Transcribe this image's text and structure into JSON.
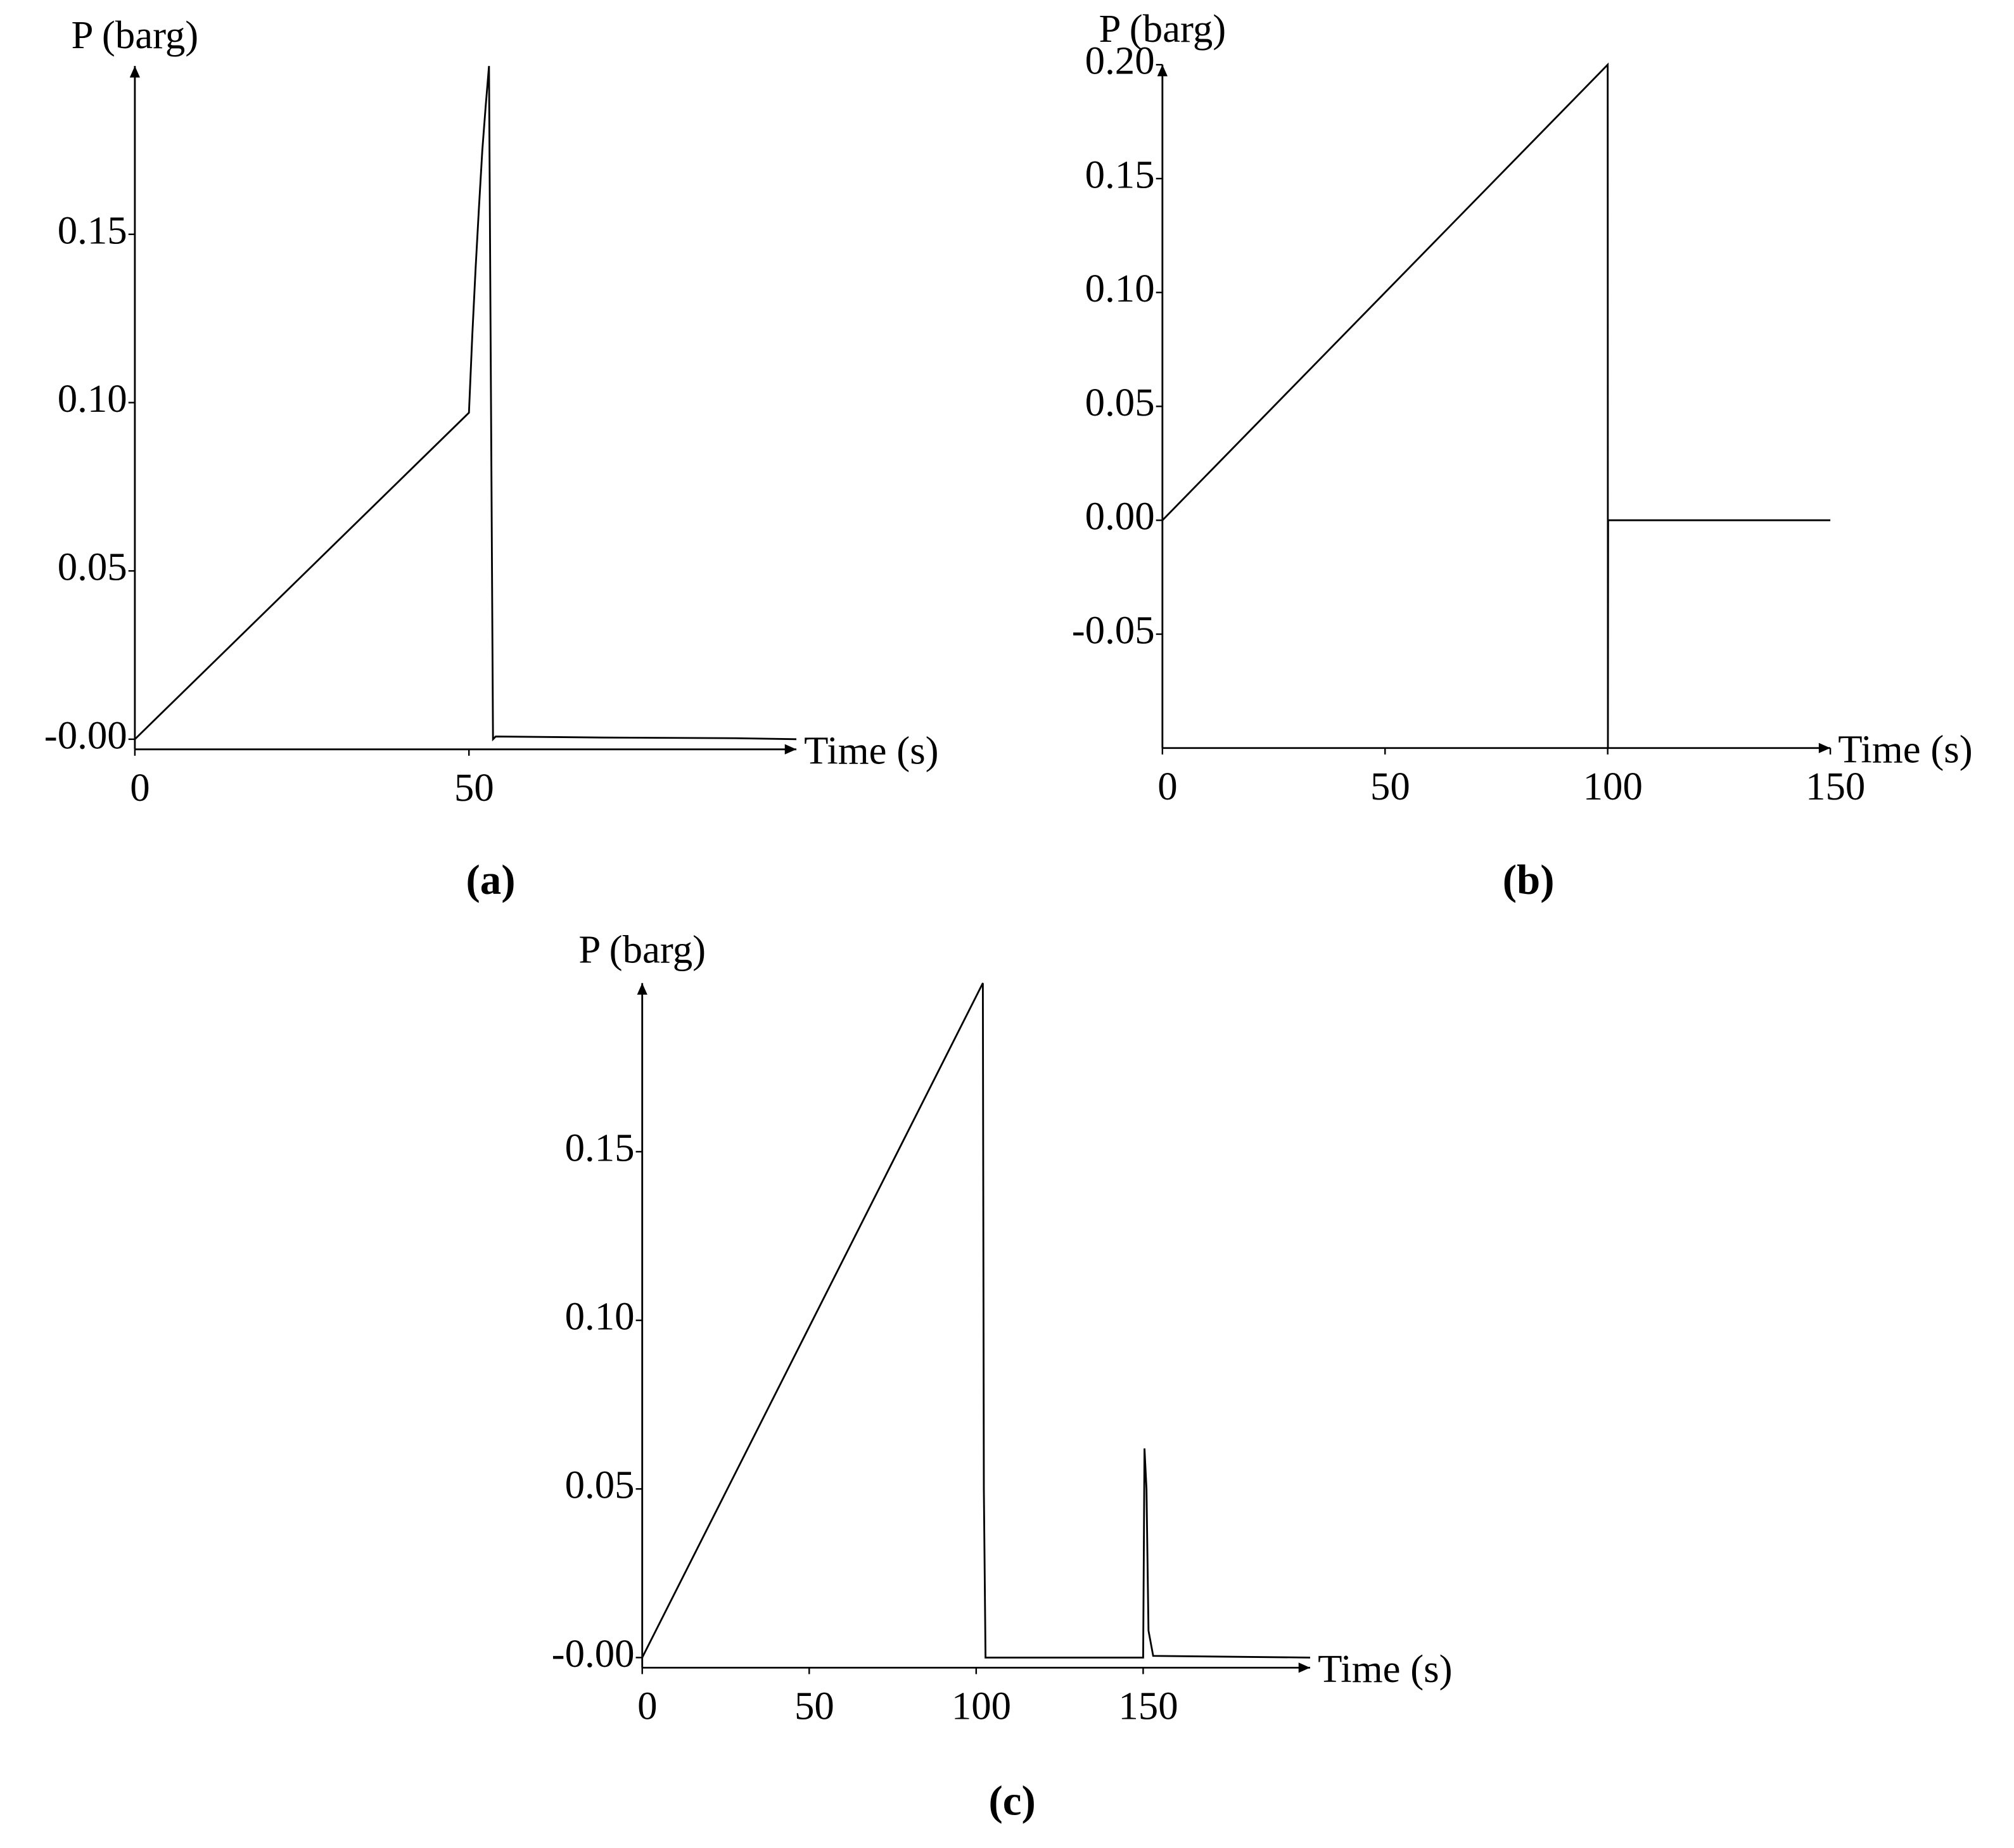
{
  "chart_data": [
    {
      "type": "line",
      "title": "(a)",
      "y_label": "P (barg)",
      "x_label": "Time (s)",
      "color": "#000000",
      "x": [
        0,
        50,
        50.5,
        51,
        51.5,
        52,
        52.5,
        53,
        53.3,
        53.6,
        54,
        70,
        90,
        99
      ],
      "values": [
        0,
        0.097,
        0.12,
        0.14,
        0.158,
        0.175,
        0.188,
        0.2,
        0.1,
        0,
        0.0008,
        0.0005,
        0.0003,
        0
      ],
      "xlim": [
        0,
        99
      ],
      "ylim": [
        -0.003,
        0.2
      ],
      "xticks": [
        0,
        50
      ],
      "yticks": [
        {
          "value": 0,
          "label": "-0.00"
        },
        0.05,
        {
          "value": 0.1,
          "label": "0.10"
        },
        0.15
      ]
    },
    {
      "type": "line",
      "title": "(b)",
      "y_label": "P (barg)",
      "x_label": "Time (s)",
      "color": "#000000",
      "x": [
        0,
        100,
        100.05,
        100.1,
        150
      ],
      "values": [
        0,
        0.2,
        -0.1,
        0,
        0
      ],
      "xlim": [
        0,
        150
      ],
      "ylim": [
        -0.1,
        0.2
      ],
      "xticks": [
        0,
        50,
        100,
        150
      ],
      "yticks": [
        -0.05,
        {
          "value": 0,
          "label": "0.00"
        },
        0.05,
        {
          "value": 0.1,
          "label": "0.10"
        },
        0.15,
        {
          "value": 0.2,
          "label": "0.20"
        }
      ]
    },
    {
      "type": "line",
      "title": "(c)",
      "y_label": "P (barg)",
      "x_label": "Time (s)",
      "color": "#000000",
      "x": [
        0,
        102,
        102.3,
        102.8,
        150,
        150.4,
        151,
        151.6,
        153,
        200
      ],
      "values": [
        0,
        0.2,
        0.05,
        0,
        0,
        0.062,
        0.05,
        0.008,
        0.0005,
        0
      ],
      "xlim": [
        0,
        200
      ],
      "ylim": [
        -0.003,
        0.2
      ],
      "xticks": [
        0,
        50,
        100,
        150
      ],
      "yticks": [
        {
          "value": 0,
          "label": "-0.00"
        },
        0.05,
        {
          "value": 0.1,
          "label": "0.10"
        },
        0.15
      ]
    }
  ]
}
